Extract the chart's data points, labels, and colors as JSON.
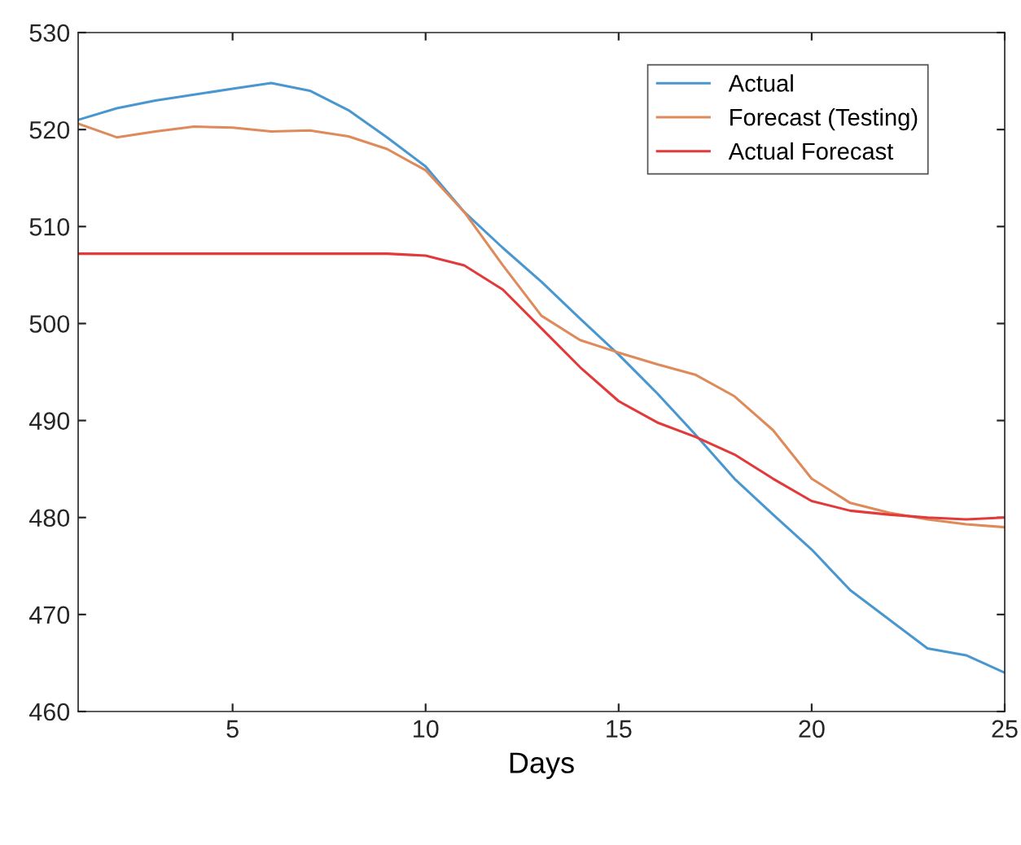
{
  "chart_data": {
    "type": "line",
    "xlabel": "Days",
    "x": [
      1,
      2,
      3,
      4,
      5,
      6,
      7,
      8,
      9,
      10,
      11,
      12,
      13,
      14,
      15,
      16,
      17,
      18,
      19,
      20,
      21,
      22,
      23,
      24,
      25
    ],
    "series": [
      {
        "name": "Actual",
        "color": "#4a97d0",
        "values": [
          521,
          522.2,
          523,
          523.6,
          524.2,
          524.8,
          524,
          522,
          519.2,
          516.2,
          511.5,
          507.8,
          504.3,
          500.5,
          496.8,
          492.8,
          488.5,
          484,
          480.3,
          476.7,
          472.5,
          469.5,
          466.5,
          465.8,
          464
        ]
      },
      {
        "name": "Forecast (Testing)",
        "color": "#de8a5a",
        "values": [
          520.6,
          519.2,
          519.8,
          520.3,
          520.2,
          519.8,
          519.9,
          519.3,
          518,
          515.8,
          511.5,
          506,
          500.8,
          498.3,
          497,
          495.8,
          494.7,
          492.5,
          489,
          484,
          481.5,
          480.5,
          479.8,
          479.3,
          479
        ]
      },
      {
        "name": "Actual Forecast",
        "color": "#e23a3a",
        "values": [
          507.2,
          507.2,
          507.2,
          507.2,
          507.2,
          507.2,
          507.2,
          507.2,
          507.2,
          507,
          506,
          503.5,
          499.5,
          495.5,
          492,
          489.8,
          488.3,
          486.5,
          484,
          481.7,
          480.7,
          480.3,
          480,
          479.8,
          480
        ]
      }
    ],
    "xlim": [
      1,
      25
    ],
    "xticks": [
      5,
      10,
      15,
      20,
      25
    ],
    "ylim": [
      460,
      530
    ],
    "yticks": [
      460,
      470,
      480,
      490,
      500,
      510,
      520,
      530
    ],
    "grid": false,
    "legend": "top right",
    "marker": "none",
    "line_style": "solid"
  }
}
